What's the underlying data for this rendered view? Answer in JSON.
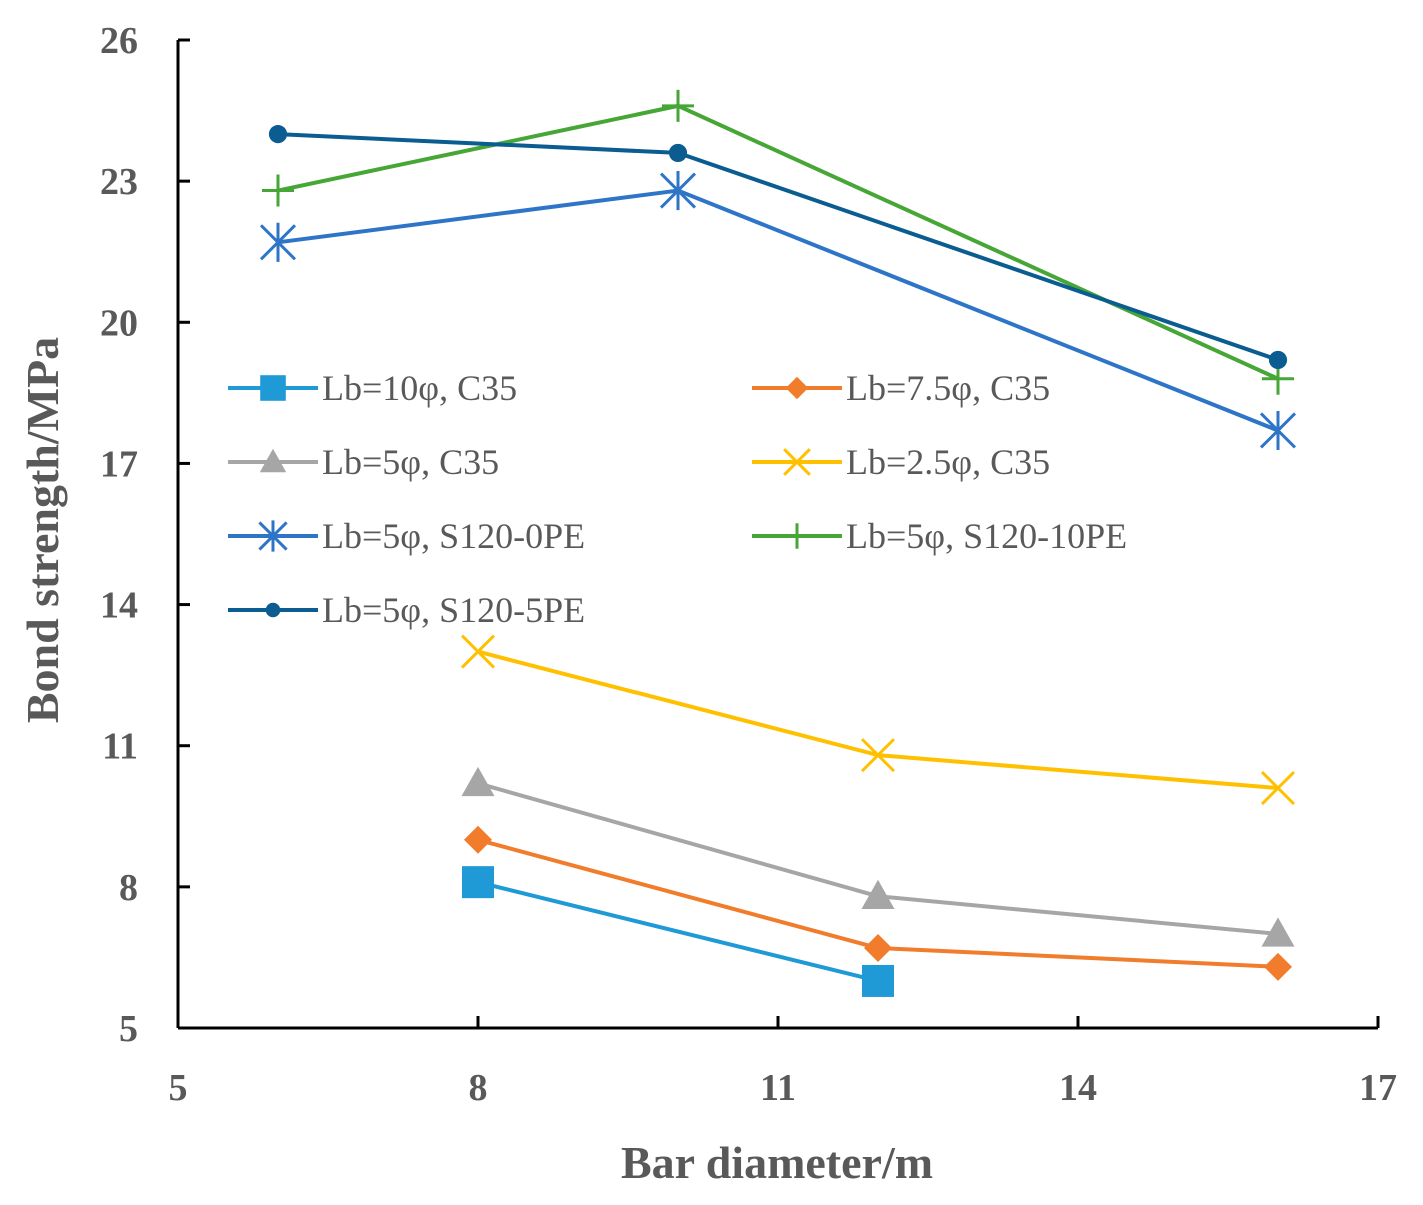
{
  "chart_data": {
    "type": "line",
    "title": "",
    "xlabel": "Bar diameter/m",
    "ylabel": "Bond strength/MPa",
    "xlim": [
      5,
      17
    ],
    "ylim": [
      5,
      26
    ],
    "xticks": [
      5,
      8,
      11,
      14,
      17
    ],
    "yticks": [
      5,
      8,
      11,
      14,
      17,
      20,
      23,
      26
    ],
    "legend_position": "center-left",
    "grid": false,
    "series": [
      {
        "name": "Lb=10φ, C35",
        "color": "#1f9ad6",
        "marker": "square",
        "x": [
          8,
          12
        ],
        "y": [
          8.1,
          6.0
        ]
      },
      {
        "name": "Lb=7.5φ, C35",
        "color": "#f07c2c",
        "marker": "diamond",
        "x": [
          8,
          12,
          16
        ],
        "y": [
          9.0,
          6.7,
          6.3
        ]
      },
      {
        "name": "Lb=5φ, C35",
        "color": "#a6a6a6",
        "marker": "triangle",
        "x": [
          8,
          12,
          16
        ],
        "y": [
          10.2,
          7.8,
          7.0
        ]
      },
      {
        "name": "Lb=2.5φ, C35",
        "color": "#ffc000",
        "marker": "x",
        "x": [
          8,
          12,
          16
        ],
        "y": [
          13.0,
          10.8,
          10.1
        ]
      },
      {
        "name": "Lb=5φ, S120-0PE",
        "color": "#2e75c7",
        "marker": "asterisk",
        "x": [
          6,
          10,
          16
        ],
        "y": [
          21.7,
          22.8,
          17.7
        ]
      },
      {
        "name": "Lb=5φ, S120-10PE",
        "color": "#46a636",
        "marker": "plus",
        "x": [
          6,
          10,
          16
        ],
        "y": [
          22.8,
          24.6,
          18.8
        ]
      },
      {
        "name": "Lb=5φ, S120-5PE",
        "color": "#0b5c91",
        "marker": "circle",
        "x": [
          6,
          10,
          16
        ],
        "y": [
          24.0,
          23.6,
          19.2
        ]
      }
    ]
  }
}
